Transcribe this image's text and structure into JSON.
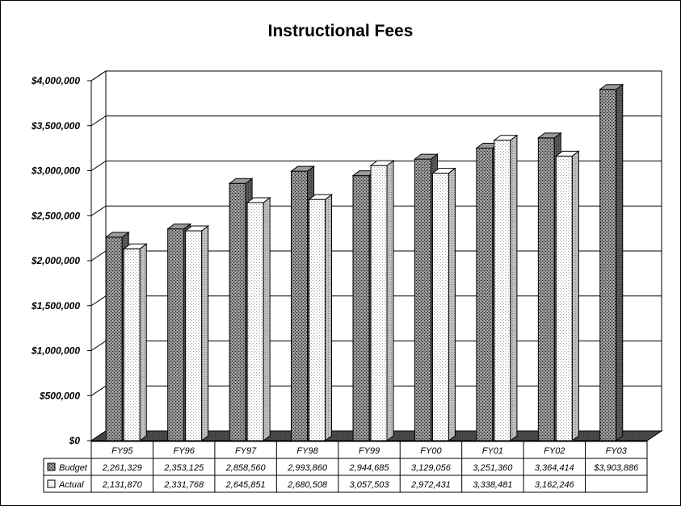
{
  "chart_data": {
    "type": "bar",
    "title": "Instructional Fees",
    "categories": [
      "FY95",
      "FY96",
      "FY97",
      "FY98",
      "FY99",
      "FY00",
      "FY01",
      "FY02",
      "FY03"
    ],
    "series": [
      {
        "name": "Budget",
        "values": [
          2261329,
          2353125,
          2858560,
          2993860,
          2944685,
          3129056,
          3251360,
          3364414,
          3903886
        ],
        "labels": [
          "2,261,329",
          "2,353,125",
          "2,858,560",
          "2,993,860",
          "2,944,685",
          "3,129,056",
          "3,251,360",
          "3,364,414",
          "$3,903,886"
        ],
        "color": "#7f7f7f"
      },
      {
        "name": "Actual",
        "values": [
          2131870,
          2331768,
          2645851,
          2680508,
          3057503,
          2972431,
          3338481,
          3162246,
          null
        ],
        "labels": [
          "2,131,870",
          "2,331,768",
          "2,645,851",
          "2,680,508",
          "3,057,503",
          "2,972,431",
          "3,338,481",
          "3,162,246",
          ""
        ],
        "color": "#ffffff"
      }
    ],
    "ylim": [
      0,
      4000000
    ],
    "yticks": [
      0,
      500000,
      1000000,
      1500000,
      2000000,
      2500000,
      3000000,
      3500000,
      4000000
    ],
    "ytick_labels": [
      "$0",
      "$500,000",
      "$1,000,000",
      "$1,500,000",
      "$2,000,000",
      "$2,500,000",
      "$3,000,000",
      "$3,500,000",
      "$4,000,000"
    ],
    "grid": true,
    "legend": "data-table",
    "three_d": true
  }
}
